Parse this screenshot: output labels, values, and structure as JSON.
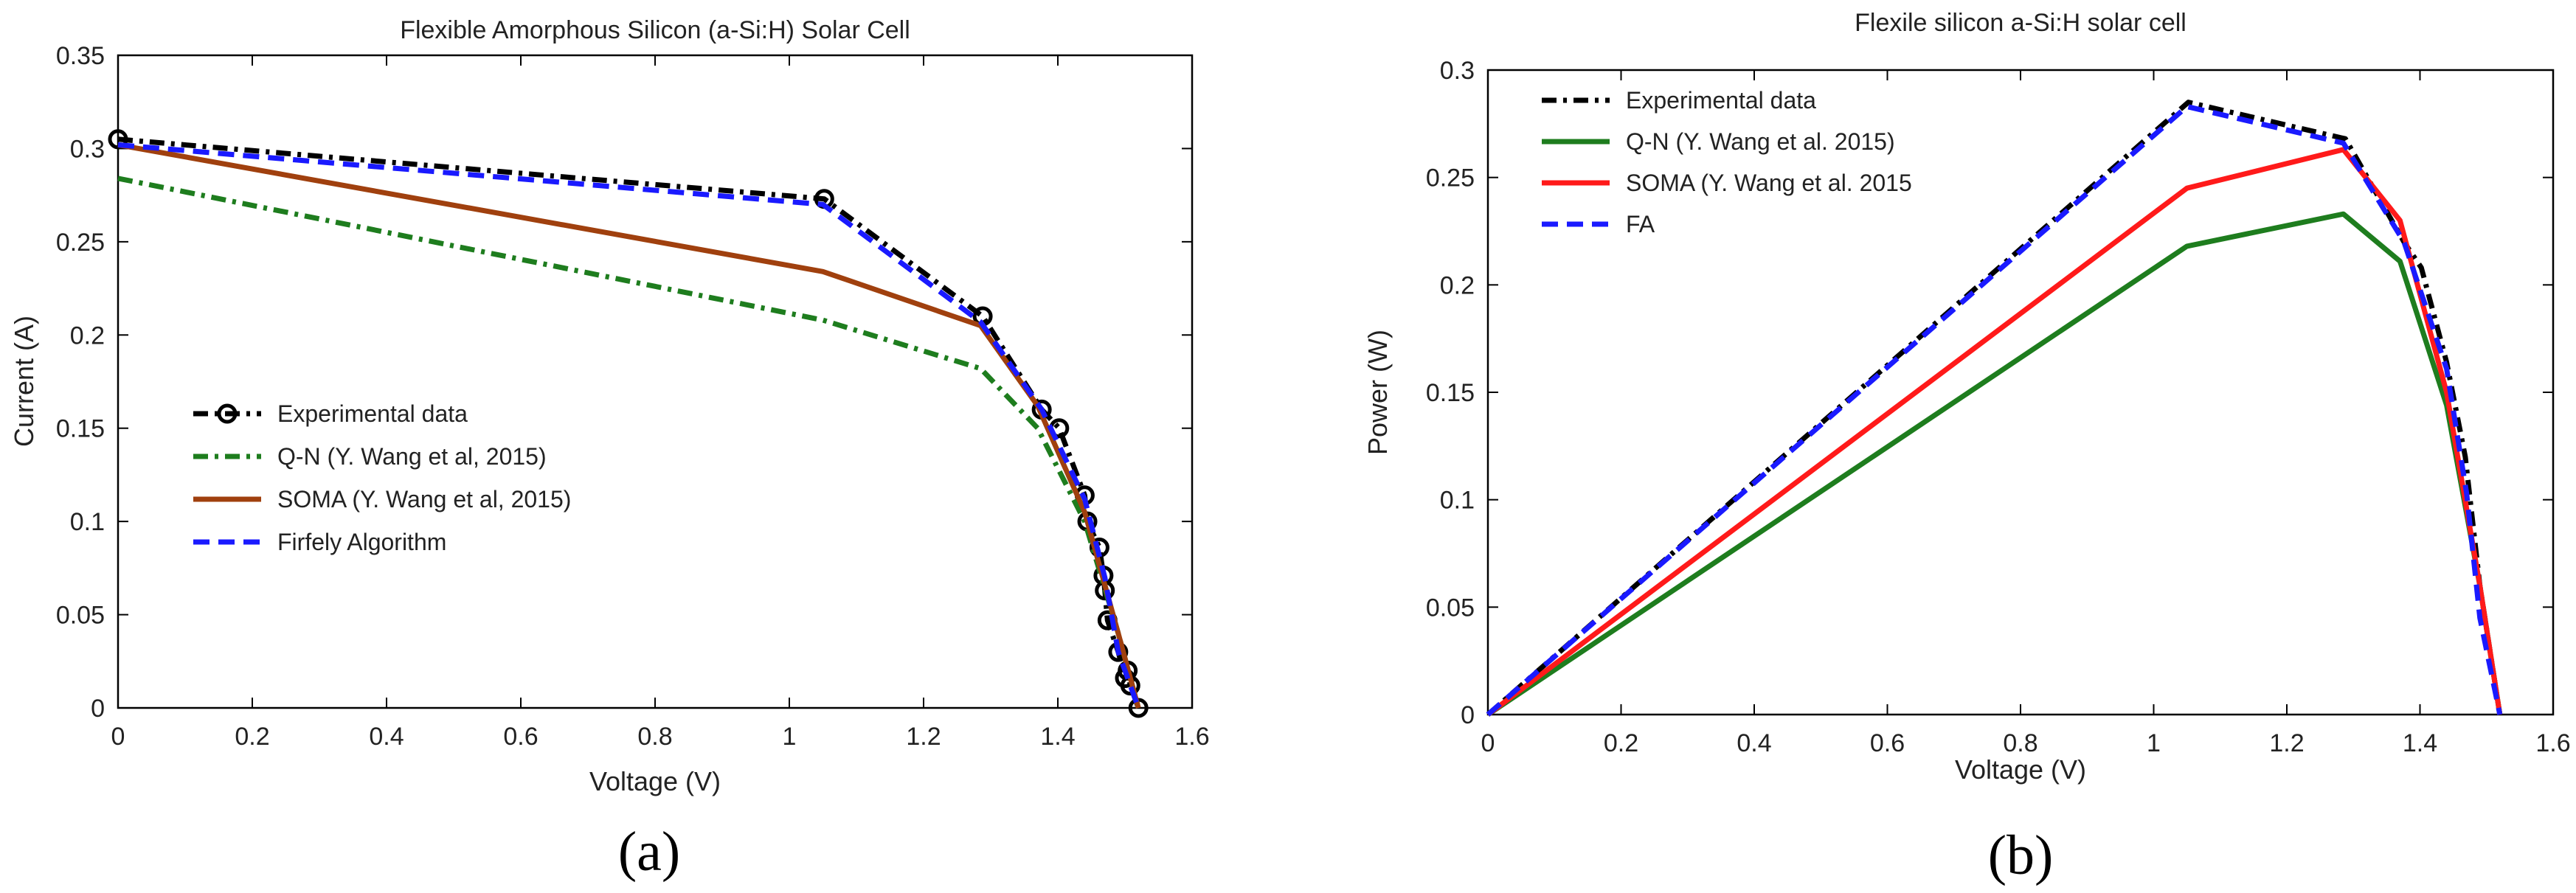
{
  "chart_data": [
    {
      "type": "line",
      "panel": "a",
      "title": "Flexible Amorphous Silicon (a-Si:H) Solar Cell",
      "xlabel": "Voltage (V)",
      "ylabel": "Current (A)",
      "xlim": [
        0,
        1.6
      ],
      "ylim": [
        0,
        0.35
      ],
      "xticks": [
        0,
        0.2,
        0.4,
        0.6,
        0.8,
        1,
        1.2,
        1.4,
        1.6
      ],
      "xtick_labels": [
        "0",
        "0.2",
        "0.4",
        "0.6",
        "0.8",
        "1",
        "1.2",
        "1.4",
        "1.6"
      ],
      "yticks": [
        0,
        0.05,
        0.1,
        0.15,
        0.2,
        0.25,
        0.3,
        0.35
      ],
      "ytick_labels": [
        "0",
        "0.05",
        "0.1",
        "0.15",
        "0.2",
        "0.25",
        "0.3",
        "0.35"
      ],
      "legend_position": "center-left",
      "caption": "(a)",
      "series": [
        {
          "name": "Experimental data",
          "color": "#000000",
          "style": "dashdot",
          "marker": "circle",
          "x": [
            0,
            1.052,
            1.288,
            1.376,
            1.402,
            1.44,
            1.444,
            1.462,
            1.468,
            1.47,
            1.474,
            1.49,
            1.5,
            1.504,
            1.508,
            1.52
          ],
          "y": [
            0.305,
            0.273,
            0.21,
            0.16,
            0.15,
            0.114,
            0.1,
            0.086,
            0.071,
            0.063,
            0.047,
            0.03,
            0.016,
            0.02,
            0.012,
            0.0
          ]
        },
        {
          "name": "Q-N (Y. Wang et al, 2015)",
          "color": "#1e7d1e",
          "style": "dashdot",
          "x": [
            0,
            1.05,
            1.285,
            1.37,
            1.44,
            1.49,
            1.52
          ],
          "y": [
            0.284,
            0.208,
            0.182,
            0.15,
            0.1,
            0.04,
            0.0
          ]
        },
        {
          "name": "SOMA (Y. Wang et al, 2015)",
          "color": "#a0400e",
          "style": "solid",
          "x": [
            0,
            1.05,
            1.285,
            1.37,
            1.44,
            1.49,
            1.52
          ],
          "y": [
            0.302,
            0.234,
            0.205,
            0.162,
            0.105,
            0.04,
            0.0
          ]
        },
        {
          "name": "Firfely Algorithm",
          "color": "#1a1aff",
          "style": "dashed",
          "x": [
            0,
            1.05,
            1.285,
            1.376,
            1.44,
            1.47,
            1.49,
            1.52
          ],
          "y": [
            0.302,
            0.27,
            0.207,
            0.16,
            0.112,
            0.07,
            0.03,
            0.0
          ]
        }
      ]
    },
    {
      "type": "line",
      "panel": "b",
      "title": "Flexile silicon a-Si:H solar cell",
      "xlabel": "Voltage (V)",
      "ylabel": "Power (W)",
      "xlim": [
        0,
        1.6
      ],
      "ylim": [
        0,
        0.3
      ],
      "xticks": [
        0,
        0.2,
        0.4,
        0.6,
        0.8,
        1,
        1.2,
        1.4,
        1.6
      ],
      "xtick_labels": [
        "0",
        "0.2",
        "0.4",
        "0.6",
        "0.8",
        "1",
        "1.2",
        "1.4",
        "1.6"
      ],
      "yticks": [
        0,
        0.05,
        0.1,
        0.15,
        0.2,
        0.25,
        0.3
      ],
      "ytick_labels": [
        "0",
        "0.05",
        "0.1",
        "0.15",
        "0.2",
        "0.25",
        "0.3"
      ],
      "legend_position": "top-left",
      "caption": "(b)",
      "series": [
        {
          "name": "Experimental data",
          "color": "#000000",
          "style": "dashdot",
          "x": [
            0,
            1.052,
            1.288,
            1.376,
            1.402,
            1.44,
            1.468,
            1.49,
            1.52
          ],
          "y": [
            0,
            0.285,
            0.268,
            0.22,
            0.208,
            0.164,
            0.12,
            0.06,
            0.0
          ]
        },
        {
          "name": "Q-N (Y. Wang et al. 2015)",
          "color": "#1e7d1e",
          "style": "solid",
          "x": [
            0,
            1.05,
            1.285,
            1.37,
            1.44,
            1.49,
            1.52
          ],
          "y": [
            0,
            0.218,
            0.233,
            0.211,
            0.144,
            0.06,
            0.0
          ]
        },
        {
          "name": "SOMA  (Y. Wang et al. 2015",
          "color": "#ff1a1a",
          "style": "solid",
          "x": [
            0,
            1.05,
            1.285,
            1.37,
            1.44,
            1.49,
            1.52
          ],
          "y": [
            0,
            0.245,
            0.263,
            0.23,
            0.15,
            0.06,
            0.0
          ]
        },
        {
          "name": "FA",
          "color": "#1a1aff",
          "style": "dashed",
          "x": [
            0,
            1.05,
            1.285,
            1.376,
            1.44,
            1.47,
            1.49,
            1.52
          ],
          "y": [
            0,
            0.283,
            0.266,
            0.22,
            0.161,
            0.103,
            0.045,
            0.0
          ]
        }
      ]
    }
  ]
}
